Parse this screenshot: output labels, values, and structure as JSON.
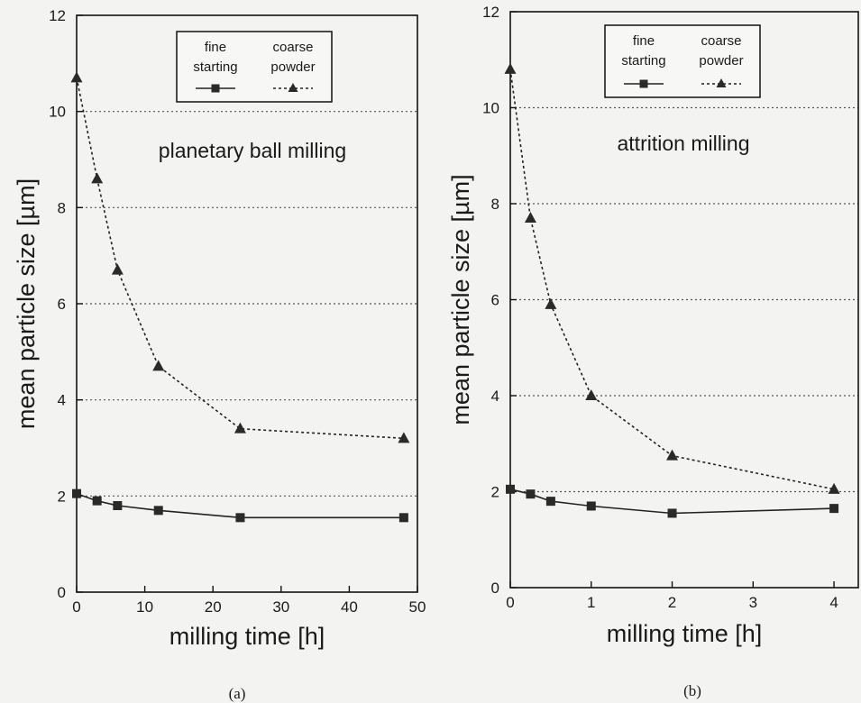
{
  "figure": {
    "caption_a": "(a)",
    "caption_b": "(b)"
  },
  "chart_data": [
    {
      "type": "line",
      "title": "planetary ball milling",
      "xlabel": "milling time [h]",
      "ylabel": "mean particle size [µm]",
      "xlim": [
        0,
        50
      ],
      "ylim": [
        0,
        12
      ],
      "x_ticks": [
        0,
        10,
        20,
        30,
        40,
        50
      ],
      "y_ticks": [
        0,
        2,
        4,
        6,
        8,
        10,
        12
      ],
      "grid": "horizontal dotted",
      "legend_position": "top-right",
      "series": [
        {
          "name": "fine starting",
          "marker": "square",
          "line": "solid",
          "x": [
            0,
            3,
            6,
            12,
            24,
            48
          ],
          "y": [
            2.05,
            1.9,
            1.8,
            1.7,
            1.55,
            1.55
          ]
        },
        {
          "name": "coarse powder",
          "marker": "triangle",
          "line": "dotted",
          "x": [
            0,
            3,
            6,
            12,
            24,
            48
          ],
          "y": [
            10.7,
            8.6,
            6.7,
            4.7,
            3.4,
            3.2
          ]
        }
      ]
    },
    {
      "type": "line",
      "title": "attrition milling",
      "xlabel": "milling time [h]",
      "ylabel": "mean particle size [µm]",
      "xlim": [
        0,
        4.3
      ],
      "ylim": [
        0,
        12
      ],
      "x_ticks": [
        0,
        1,
        2,
        3,
        4
      ],
      "y_ticks": [
        0,
        2,
        4,
        6,
        8,
        10,
        12
      ],
      "grid": "horizontal dotted",
      "legend_position": "top-right",
      "series": [
        {
          "name": "fine starting",
          "marker": "square",
          "line": "solid",
          "x": [
            0,
            0.25,
            0.5,
            1,
            2,
            4
          ],
          "y": [
            2.05,
            1.95,
            1.8,
            1.7,
            1.55,
            1.65
          ]
        },
        {
          "name": "coarse powder",
          "marker": "triangle",
          "line": "dotted",
          "x": [
            0,
            0.25,
            0.5,
            1,
            2,
            4
          ],
          "y": [
            10.8,
            7.7,
            5.9,
            4.0,
            2.75,
            2.05
          ]
        }
      ]
    }
  ]
}
